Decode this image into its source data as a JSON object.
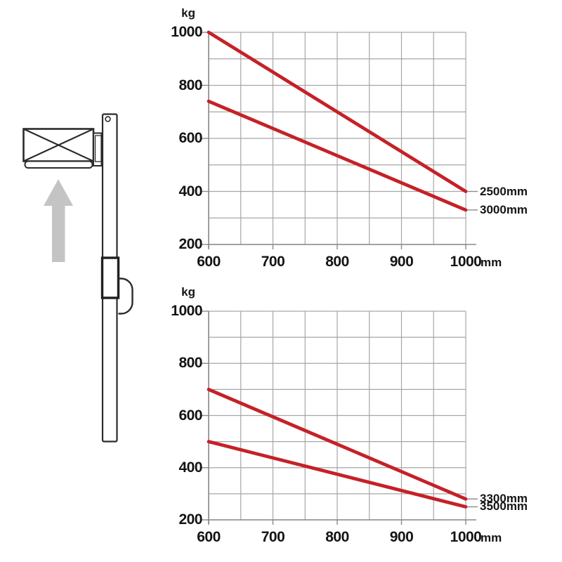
{
  "colors": {
    "series_red": "#c52127",
    "grid_gray": "#a6a6a6",
    "axis_gray": "#8a8a8a",
    "arrow_gray": "#c4c4c4",
    "lineart_dark": "#2b2b2b",
    "text_black": "#141414",
    "background": "#ffffff"
  },
  "illustration": {
    "description": "Side-view line drawing of a stacker mast with crossed load platform and gray upward arrow indicating lift direction"
  },
  "chart_data": [
    {
      "type": "line",
      "title": "",
      "ylabel": "kg",
      "xlabel": "mm",
      "xlim": [
        600,
        1000
      ],
      "ylim": [
        200,
        1000
      ],
      "x_gridline_step": 50,
      "y_gridline_step": 100,
      "x_tick_labels": [
        600,
        700,
        800,
        900,
        1000
      ],
      "y_tick_labels": [
        1000,
        800,
        600,
        400,
        200
      ],
      "grid": true,
      "legend_position": "right-of-line-end",
      "series": [
        {
          "name": "2500mm",
          "x": [
            600,
            1000
          ],
          "y": [
            1000,
            400
          ]
        },
        {
          "name": "3000mm",
          "x": [
            600,
            1000
          ],
          "y": [
            740,
            330
          ]
        }
      ]
    },
    {
      "type": "line",
      "title": "",
      "ylabel": "kg",
      "xlabel": "mm",
      "xlim": [
        600,
        1000
      ],
      "ylim": [
        200,
        1000
      ],
      "x_gridline_step": 50,
      "y_gridline_step": 100,
      "x_tick_labels": [
        600,
        700,
        800,
        900,
        1000
      ],
      "y_tick_labels": [
        1000,
        800,
        600,
        400,
        200
      ],
      "grid": true,
      "legend_position": "right-of-line-end",
      "series": [
        {
          "name": "3300mm",
          "x": [
            600,
            1000
          ],
          "y": [
            700,
            280
          ]
        },
        {
          "name": "3500mm",
          "x": [
            600,
            1000
          ],
          "y": [
            500,
            250
          ]
        }
      ]
    }
  ]
}
